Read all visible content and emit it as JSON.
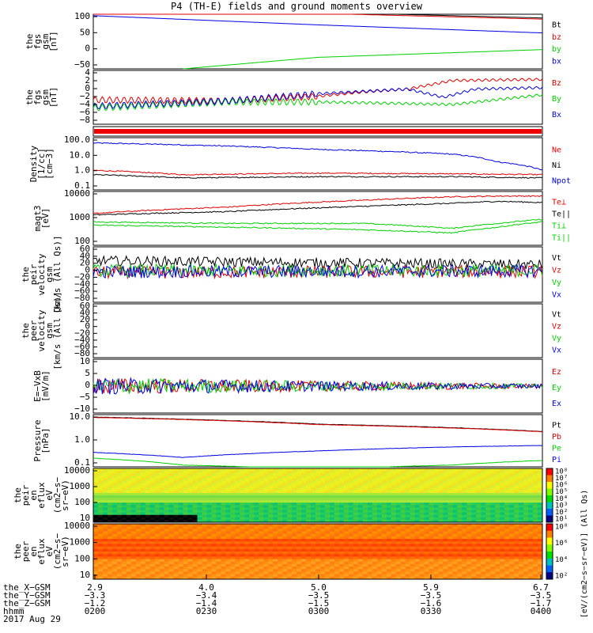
{
  "title": "P4 (TH-E) fields and ground moments overview",
  "colors": {
    "black": "#000000",
    "red": "#e00000",
    "green": "#00d000",
    "blue": "#0000e0"
  },
  "chart_data": [
    {
      "type": "line",
      "id": "fgs",
      "ylabel": [
        "the",
        "fgs",
        "gsm",
        "[nT]"
      ],
      "yticks": [
        "100",
        "50",
        "0",
        "−50"
      ],
      "ylim": [
        -85,
        105
      ],
      "legend": [
        {
          "name": "Bt",
          "color": "black"
        },
        {
          "name": "bz",
          "color": "red"
        },
        {
          "name": "by",
          "color": "green"
        },
        {
          "name": "bx",
          "color": "blue"
        }
      ],
      "series": [
        {
          "name": "Bt",
          "x": [
            0,
            0.5,
            1
          ],
          "y": [
            135,
            112,
            92
          ]
        },
        {
          "name": "bz",
          "x": [
            0,
            0.5,
            1
          ],
          "y": [
            130,
            108,
            88
          ]
        },
        {
          "name": "by",
          "x": [
            0.2,
            0.5,
            1
          ],
          "y": [
            -85,
            -45,
            -18
          ]
        },
        {
          "name": "bx",
          "x": [
            0,
            0.5,
            1
          ],
          "y": [
            100,
            68,
            40
          ]
        }
      ]
    },
    {
      "type": "line",
      "id": "fgs_dsl",
      "ylabel": [
        "the",
        "fgs",
        "gsm",
        "[nT]"
      ],
      "yticks": [
        "4",
        "2",
        "0",
        "−2",
        "−4",
        "−6",
        "−8"
      ],
      "ylim": [
        -9,
        6
      ],
      "legend": [
        {
          "name": "Bz",
          "color": "red"
        },
        {
          "name": "By",
          "color": "green"
        },
        {
          "name": "Bx",
          "color": "blue"
        }
      ],
      "series": [
        {
          "name": "Bz",
          "x": [
            0,
            0.3,
            0.5,
            0.6,
            0.7,
            0.8,
            1
          ],
          "y": [
            -2.2,
            -2.5,
            -1.2,
            0,
            0.8,
            3.2,
            3.5
          ]
        },
        {
          "name": "By",
          "x": [
            0,
            0.3,
            0.5,
            0.6,
            0.8,
            1
          ],
          "y": [
            -4.5,
            -2.8,
            -2.8,
            -3.0,
            -3.5,
            -0.8
          ]
        },
        {
          "name": "Bx",
          "x": [
            0,
            0.3,
            0.5,
            0.7,
            0.78,
            0.85,
            1
          ],
          "y": [
            -4.0,
            -2.5,
            -0.5,
            0.8,
            -1.5,
            0.8,
            1.2
          ]
        }
      ]
    },
    {
      "type": "line",
      "id": "density",
      "ylabel": [
        "Density",
        "[1/cc]",
        "[cm−3]"
      ],
      "yticks": [
        "100.0",
        "10.0",
        "1.0",
        "0.1"
      ],
      "ylim": [
        0.09,
        160
      ],
      "log": true,
      "legend": [
        {
          "name": "Ne",
          "color": "red"
        },
        {
          "name": "Ni",
          "color": "black"
        },
        {
          "name": "Npot",
          "color": "blue"
        }
      ],
      "series": [
        {
          "name": "Npot",
          "x": [
            0,
            0.5,
            0.8,
            0.9,
            1
          ],
          "y": [
            75,
            30,
            15,
            5,
            1.5
          ]
        },
        {
          "name": "Ne",
          "x": [
            0,
            0.2,
            0.5,
            0.8,
            1
          ],
          "y": [
            1.5,
            0.8,
            1.0,
            0.9,
            0.8
          ]
        },
        {
          "name": "Ni",
          "x": [
            0,
            0.2,
            0.5,
            0.8,
            1
          ],
          "y": [
            0.8,
            0.5,
            0.6,
            0.6,
            0.5
          ]
        }
      ]
    },
    {
      "type": "line",
      "id": "temp",
      "ylabel": [
        "magt3",
        "[eV]"
      ],
      "yticks": [
        "10000",
        "1000",
        "100"
      ],
      "ylim": [
        100,
        12000
      ],
      "log": true,
      "legend": [
        {
          "name": "Te⊥",
          "color": "red"
        },
        {
          "name": "Te||",
          "color": "black"
        },
        {
          "name": "Ti⊥",
          "color": "green"
        },
        {
          "name": "Ti||",
          "color": "green"
        }
      ],
      "series": [
        {
          "name": "Te⊥",
          "x": [
            0,
            0.3,
            0.6,
            0.8,
            0.9,
            1
          ],
          "y": [
            1700,
            3000,
            5500,
            7500,
            8000,
            8000
          ]
        },
        {
          "name": "Te||",
          "x": [
            0,
            0.3,
            0.6,
            0.8,
            0.9,
            1
          ],
          "y": [
            1500,
            2000,
            3200,
            4200,
            5000,
            4500
          ]
        },
        {
          "name": "Ti⊥",
          "x": [
            0,
            0.3,
            0.6,
            0.8,
            0.9,
            1
          ],
          "y": [
            800,
            700,
            700,
            450,
            700,
            1000
          ]
        },
        {
          "name": "Ti||",
          "x": [
            0,
            0.3,
            0.6,
            0.8,
            0.9,
            1
          ],
          "y": [
            600,
            500,
            400,
            300,
            500,
            800
          ]
        }
      ]
    },
    {
      "type": "line",
      "id": "peir_vel",
      "ylabel": [
        "the",
        "peir",
        "velocity",
        "gsm",
        "[km/s (All Qs)]"
      ],
      "yticks": [
        "60",
        "40",
        "20",
        "0",
        "−20",
        "−40",
        "−60",
        "−80"
      ],
      "ylim": [
        -80,
        60
      ],
      "legend": [
        {
          "name": "Vt",
          "color": "black"
        },
        {
          "name": "Vz",
          "color": "red"
        },
        {
          "name": "Vy",
          "color": "green"
        },
        {
          "name": "Vx",
          "color": "blue"
        }
      ],
      "series": [
        {
          "name": "Vt",
          "x": [
            0,
            1
          ],
          "y": [
            25,
            15
          ]
        },
        {
          "name": "Vz",
          "x": [
            0,
            1
          ],
          "y": [
            -5,
            -2
          ]
        },
        {
          "name": "Vy",
          "x": [
            0,
            1
          ],
          "y": [
            0,
            0
          ]
        },
        {
          "name": "Vx",
          "x": [
            0,
            1
          ],
          "y": [
            -3,
            -1
          ]
        }
      ]
    },
    {
      "type": "line",
      "id": "peer_vel",
      "ylabel": [
        "the",
        "peer",
        "velocity",
        "gsm",
        "[km/s (All Qs)]"
      ],
      "yticks": [
        "60",
        "40",
        "20",
        "0",
        "−20",
        "−40",
        "−60",
        "−80"
      ],
      "ylim": [
        -80,
        60
      ],
      "legend": [
        {
          "name": "Vt",
          "color": "black"
        },
        {
          "name": "Vz",
          "color": "red"
        },
        {
          "name": "Vy",
          "color": "green"
        },
        {
          "name": "Vx",
          "color": "blue"
        }
      ],
      "series": []
    },
    {
      "type": "line",
      "id": "efield",
      "ylabel": [
        "E=−VxB",
        "[mV/m]"
      ],
      "yticks": [
        "10",
        "5",
        "0",
        "−5",
        "−10"
      ],
      "ylim": [
        -11,
        11
      ],
      "legend": [
        {
          "name": "Ez",
          "color": "red"
        },
        {
          "name": "Ey",
          "color": "green"
        },
        {
          "name": "Ex",
          "color": "blue"
        }
      ],
      "series": [
        {
          "name": "Ez",
          "x": [
            0,
            1
          ],
          "y": [
            0,
            0
          ]
        },
        {
          "name": "Ey",
          "x": [
            0,
            1
          ],
          "y": [
            0,
            0
          ]
        },
        {
          "name": "Ex",
          "x": [
            0,
            1
          ],
          "y": [
            0,
            0
          ]
        }
      ]
    },
    {
      "type": "line",
      "id": "pressure",
      "ylabel": [
        "Pressure",
        "[nPa]"
      ],
      "yticks": [
        "10.0",
        "1.0",
        "0.1"
      ],
      "ylim": [
        0.04,
        30
      ],
      "log": true,
      "legend": [
        {
          "name": "Pt",
          "color": "black"
        },
        {
          "name": "Pb",
          "color": "red"
        },
        {
          "name": "Pe",
          "color": "green"
        },
        {
          "name": "Pi",
          "color": "blue"
        }
      ],
      "series": [
        {
          "name": "Pt",
          "x": [
            0,
            0.5,
            1
          ],
          "y": [
            22,
            9,
            3.5
          ]
        },
        {
          "name": "Pb",
          "x": [
            0,
            0.5,
            1
          ],
          "y": [
            21,
            8.5,
            3.4
          ]
        },
        {
          "name": "Pi",
          "x": [
            0,
            0.2,
            0.5,
            0.8,
            1
          ],
          "y": [
            0.25,
            0.13,
            0.3,
            0.5,
            0.6
          ]
        },
        {
          "name": "Pe",
          "x": [
            0,
            0.2,
            0.5,
            0.8,
            1
          ],
          "y": [
            0.12,
            0.05,
            0.03,
            0.05,
            0.09
          ]
        }
      ]
    },
    {
      "type": "heatmap",
      "id": "peir_en",
      "ylabel": [
        "the",
        "peir",
        "en",
        "eflux",
        "eV",
        "(cm2−s−",
        "sr−eV)"
      ],
      "yticks": [
        "10000",
        "1000",
        "100",
        "10"
      ],
      "ylim": [
        5,
        25000
      ],
      "log": true
    },
    {
      "type": "heatmap",
      "id": "peer_en",
      "ylabel": [
        "the",
        "peer",
        "en",
        "eflux",
        "eV",
        "(cm2−s−",
        "sr−eV)"
      ],
      "yticks": [
        "10000",
        "1000",
        "100",
        "10"
      ],
      "ylim": [
        5,
        25000
      ],
      "log": true
    }
  ],
  "colorbar": {
    "ticks": [
      "10⁸",
      "10⁷",
      "10⁶",
      "10⁵",
      "10⁴",
      "10³",
      "10²",
      "10¹"
    ],
    "ticks2": [
      "10⁸",
      "10⁶",
      "10⁴",
      "10²"
    ],
    "label": "[eV/(cm2−s−sr−eV)] (All Qs)"
  },
  "xaxis": {
    "rows": [
      "the_X−GSM",
      "the_Y−GSM",
      "the_Z−GSM",
      "hhmm"
    ],
    "date": "2017 Aug 29",
    "ticks": [
      {
        "x": "2.9",
        "y": "−3.3",
        "z": "−1.2",
        "t": "0200"
      },
      {
        "x": "4.0",
        "y": "−3.4",
        "z": "−1.4",
        "t": "0230"
      },
      {
        "x": "5.0",
        "y": "−3.5",
        "z": "−1.5",
        "t": "0300"
      },
      {
        "x": "5.9",
        "y": "−3.5",
        "z": "−1.6",
        "t": "0330"
      },
      {
        "x": "6.7",
        "y": "−3.5",
        "z": "−1.7",
        "t": "0400"
      }
    ]
  }
}
